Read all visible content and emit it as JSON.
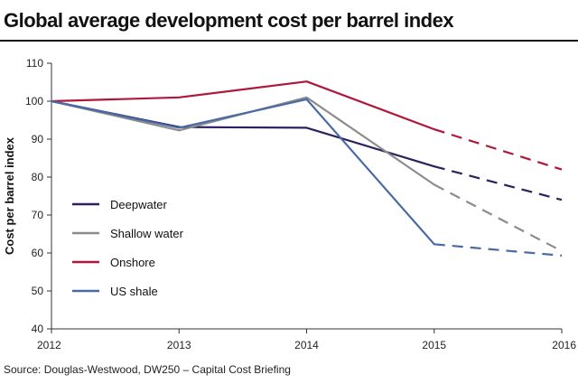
{
  "title": "Global average development cost per barrel index",
  "source": "Source: Douglas-Westwood, DW250 – Capital Cost Briefing",
  "chart_data": {
    "type": "line",
    "x": [
      2012,
      2013,
      2014,
      2015,
      2016
    ],
    "xlabel": "",
    "ylabel": "Cost per barrel index",
    "xlim": [
      2012,
      2016
    ],
    "ylim": [
      40,
      110
    ],
    "yticks": [
      40,
      50,
      60,
      70,
      80,
      90,
      100,
      110
    ],
    "xticks": [
      2012,
      2013,
      2014,
      2015,
      2016
    ],
    "forecast_from": 2015,
    "grid": false,
    "legend_position": "left",
    "series": [
      {
        "name": "Deepwater",
        "color": "#2e1f5e",
        "values": [
          100,
          93.2,
          93,
          82.8,
          74
        ]
      },
      {
        "name": "Shallow water",
        "color": "#8c8c8c",
        "values": [
          100,
          92.3,
          101,
          78,
          60.5
        ]
      },
      {
        "name": "Onshore",
        "color": "#b0173a",
        "values": [
          100,
          101,
          105.2,
          92.6,
          82
        ]
      },
      {
        "name": "US shale",
        "color": "#4a6aa5",
        "values": [
          100,
          93,
          100.5,
          62.3,
          59.3
        ]
      }
    ]
  }
}
